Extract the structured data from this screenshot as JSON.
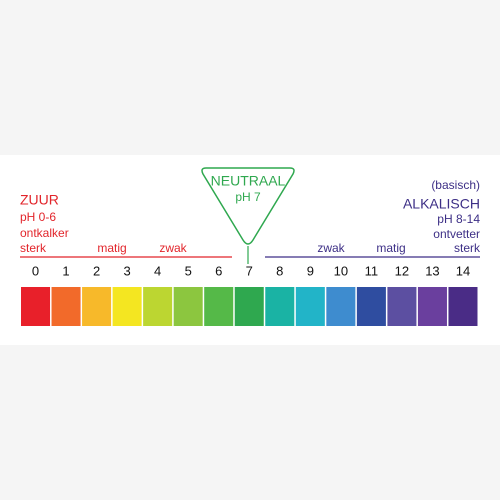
{
  "neutral": {
    "title": "NEUTRAAL",
    "subtitle": "pH 7"
  },
  "acid": {
    "title": "ZUUR",
    "range": "pH 0-6",
    "use": "ontkalker",
    "strong": "sterk",
    "medium": "matig",
    "weak": "zwak"
  },
  "alkaline": {
    "note": "(basisch)",
    "title": "ALKALISCH",
    "range": "pH 8-14",
    "use": "ontvetter",
    "weak": "zwak",
    "medium": "matig",
    "strong": "sterk"
  },
  "scale": [
    {
      "label": "0",
      "color": "#e8202a"
    },
    {
      "label": "1",
      "color": "#f26a2a"
    },
    {
      "label": "2",
      "color": "#f7b92a"
    },
    {
      "label": "3",
      "color": "#f4e621"
    },
    {
      "label": "4",
      "color": "#bcd631"
    },
    {
      "label": "5",
      "color": "#8cc63f"
    },
    {
      "label": "6",
      "color": "#55b948"
    },
    {
      "label": "7",
      "color": "#2fa84f"
    },
    {
      "label": "8",
      "color": "#1ab3a4"
    },
    {
      "label": "9",
      "color": "#22b4c8"
    },
    {
      "label": "10",
      "color": "#3e8ccf"
    },
    {
      "label": "11",
      "color": "#2f4da0"
    },
    {
      "label": "12",
      "color": "#5c4fa1"
    },
    {
      "label": "13",
      "color": "#6a3f9e"
    },
    {
      "label": "14",
      "color": "#4a2c86"
    }
  ]
}
